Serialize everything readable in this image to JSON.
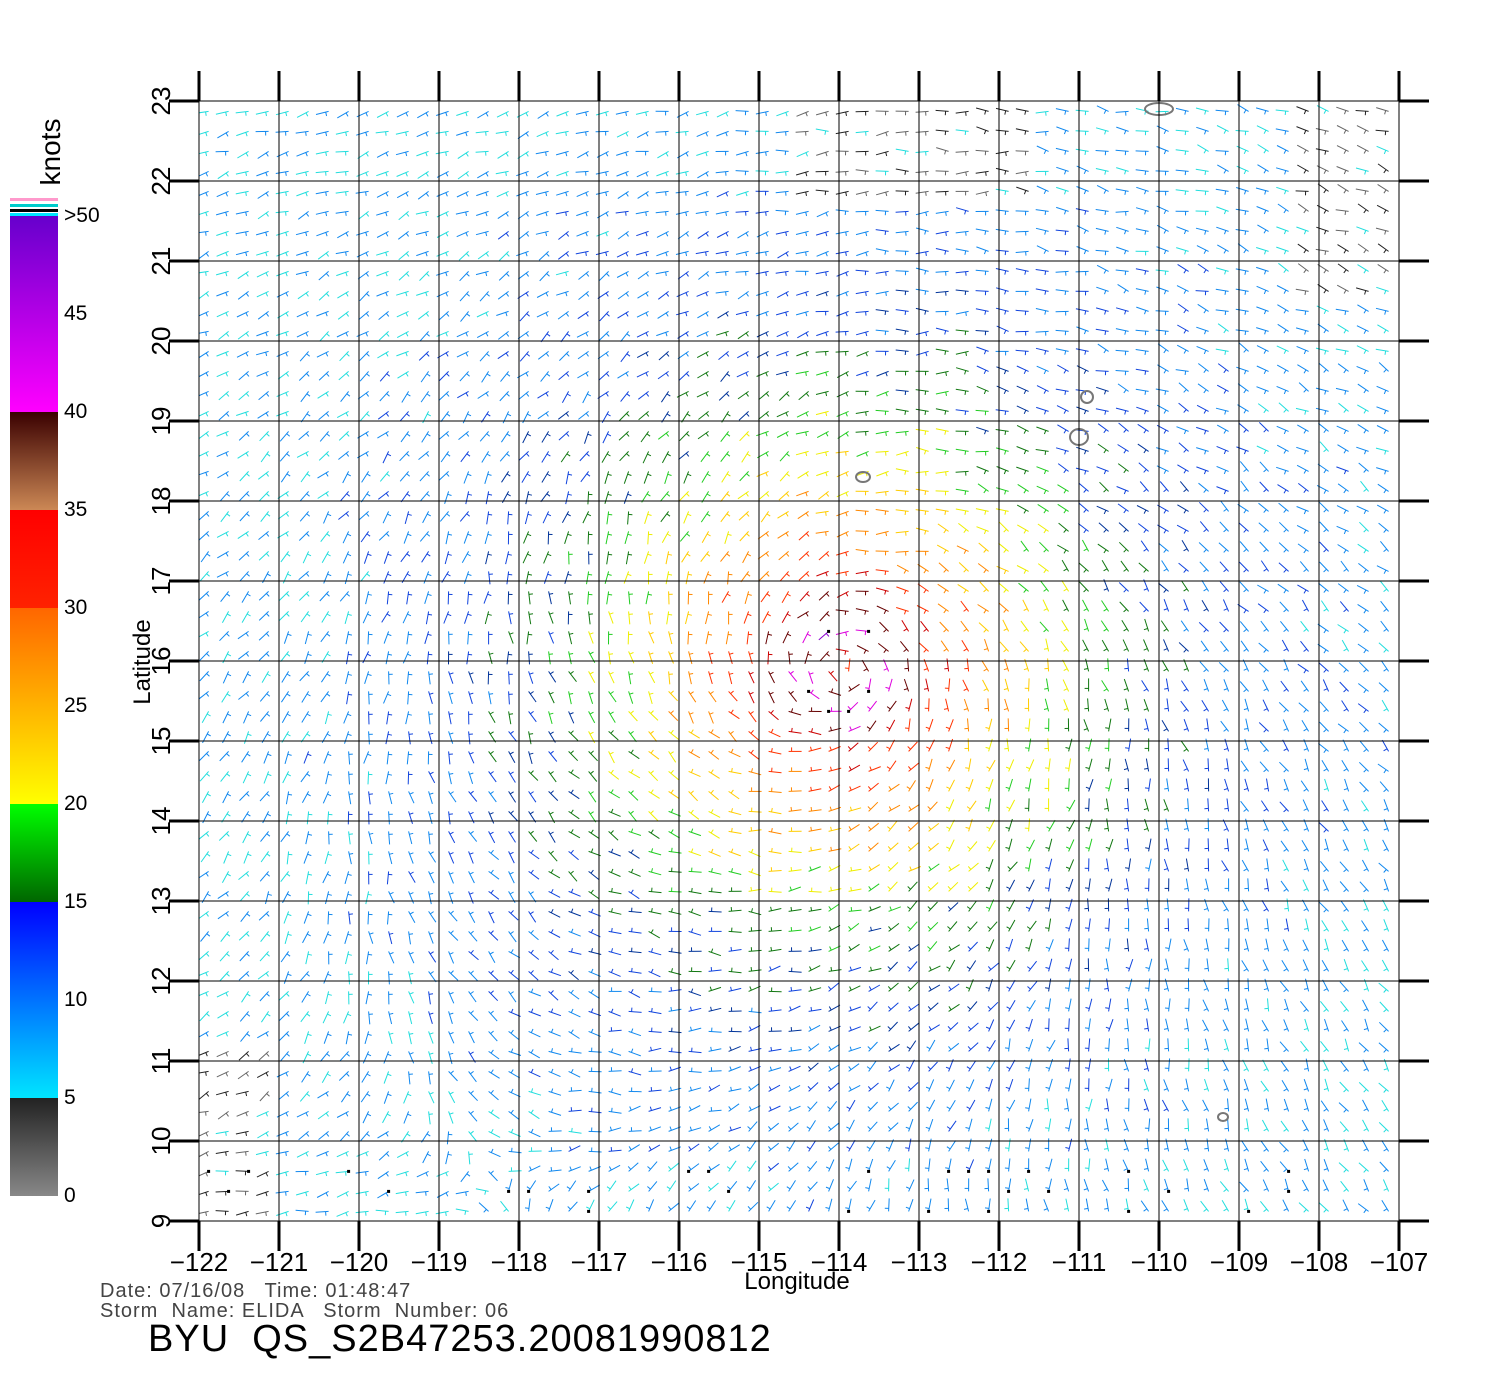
{
  "colorbar": {
    "unit": "knots",
    "tick_labels": [
      "0",
      "5",
      "10",
      "15",
      "20",
      "25",
      "30",
      "35",
      "40",
      "45",
      ">50"
    ],
    "bands": [
      {
        "from": 0,
        "to": 5,
        "colors": [
          "#888888",
          "#222222"
        ]
      },
      {
        "from": 5,
        "to": 15,
        "colors": [
          "#00e5ff",
          "#0000ff"
        ]
      },
      {
        "from": 15,
        "to": 20,
        "colors": [
          "#006600",
          "#00ff00"
        ]
      },
      {
        "from": 20,
        "to": 30,
        "colors": [
          "#ffff00",
          "#ff6600"
        ]
      },
      {
        "from": 30,
        "to": 35,
        "colors": [
          "#ff2200",
          "#ff0000"
        ]
      },
      {
        "from": 35,
        "to": 40,
        "colors": [
          "#cc8855",
          "#3a0000"
        ]
      },
      {
        "from": 40,
        "to": 50,
        "colors": [
          "#ff00ff",
          "#6600cc"
        ]
      }
    ]
  },
  "axes": {
    "xlabel": "Longitude",
    "ylabel": "Latitude",
    "lon_min": -122,
    "lon_max": -107,
    "lat_min": 9,
    "lat_max": 23,
    "x_tick_labels": [
      "−122",
      "−121",
      "−120",
      "−119",
      "−118",
      "−117",
      "−116",
      "−115",
      "−114",
      "−113",
      "−112",
      "−111",
      "−110",
      "−109",
      "−108",
      "−107"
    ],
    "y_tick_labels": [
      "9",
      "10",
      "11",
      "12",
      "13",
      "14",
      "15",
      "16",
      "17",
      "18",
      "19",
      "20",
      "21",
      "22",
      "23"
    ]
  },
  "storm_center": {
    "lon": -114.0,
    "lat": 15.9
  },
  "info": {
    "line1": "Date: 07/16/08   Time: 01:48:47",
    "line2": "Storm  Name: ELIDA   Storm  Number: 06",
    "title": "BYU  QS_S2B47253.20081990812"
  }
}
